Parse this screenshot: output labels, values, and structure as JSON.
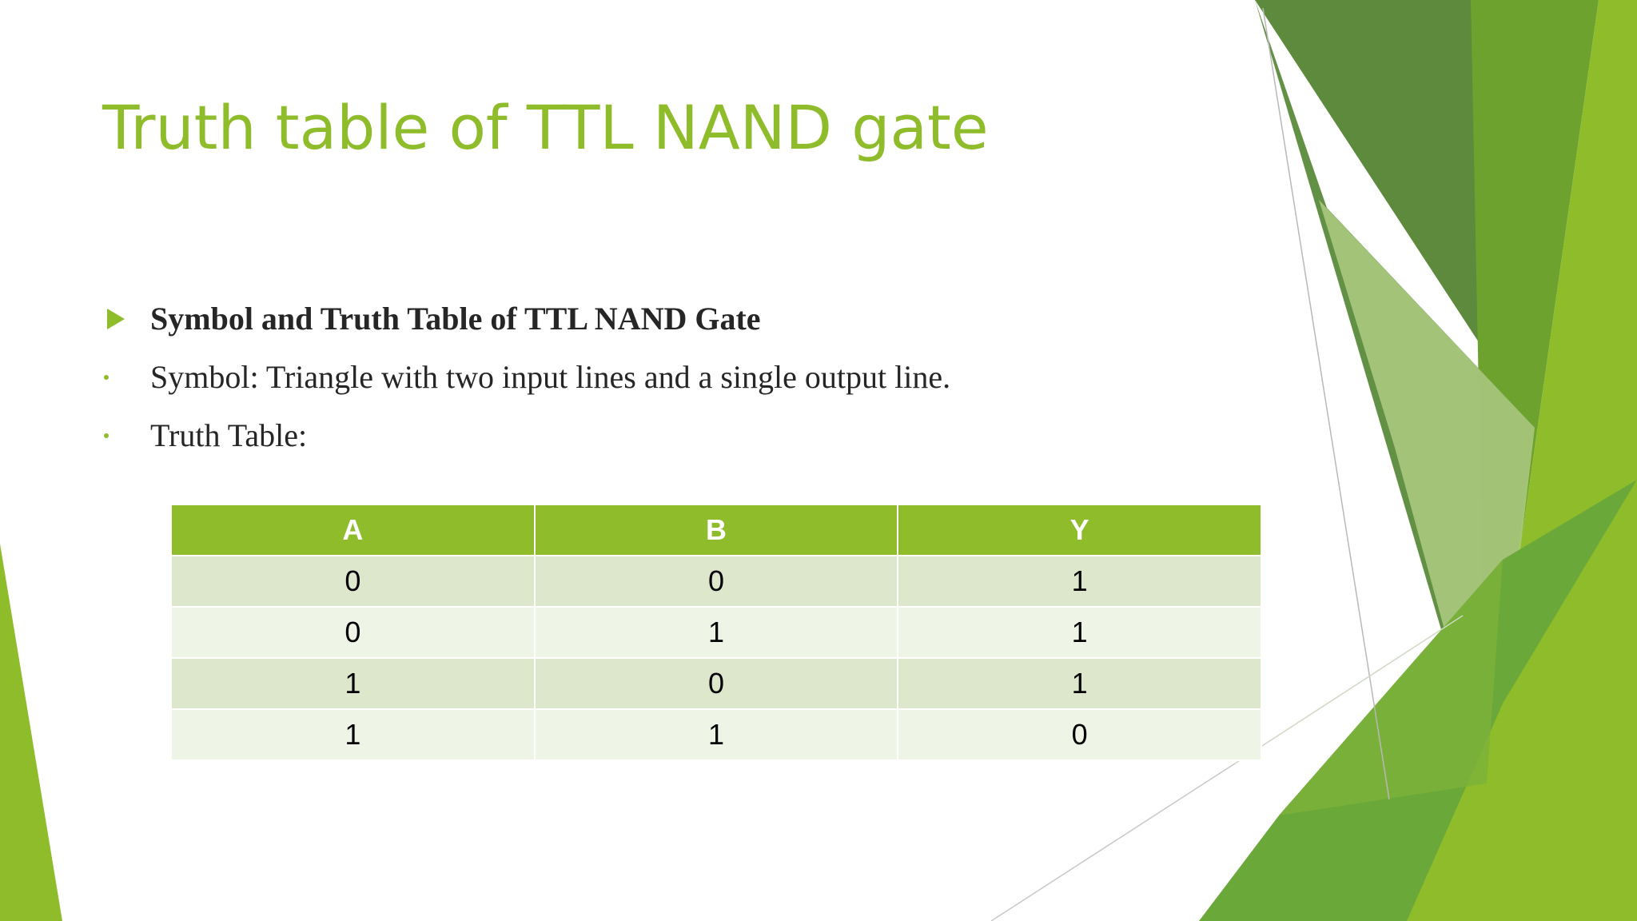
{
  "slide": {
    "title": "Truth table of TTL NAND gate",
    "accent_color": "#8fbc2b",
    "bullets": [
      {
        "marker": "arrow",
        "text": "Symbol and Truth Table of TTL NAND Gate",
        "bold": true
      },
      {
        "marker": "dot",
        "text": "Symbol: Triangle with two input lines and a single output line.",
        "bold": false
      },
      {
        "marker": "dot",
        "text": "Truth Table:",
        "bold": false
      }
    ]
  },
  "truth_table": {
    "headers": [
      "A",
      "B",
      "Y"
    ],
    "rows": [
      [
        "0",
        "0",
        "1"
      ],
      [
        "0",
        "1",
        "1"
      ],
      [
        "1",
        "0",
        "1"
      ],
      [
        "1",
        "1",
        "0"
      ]
    ],
    "header_color": "#8fbc2b",
    "row_colors": [
      "#dce7cc",
      "#eef4e6"
    ]
  }
}
